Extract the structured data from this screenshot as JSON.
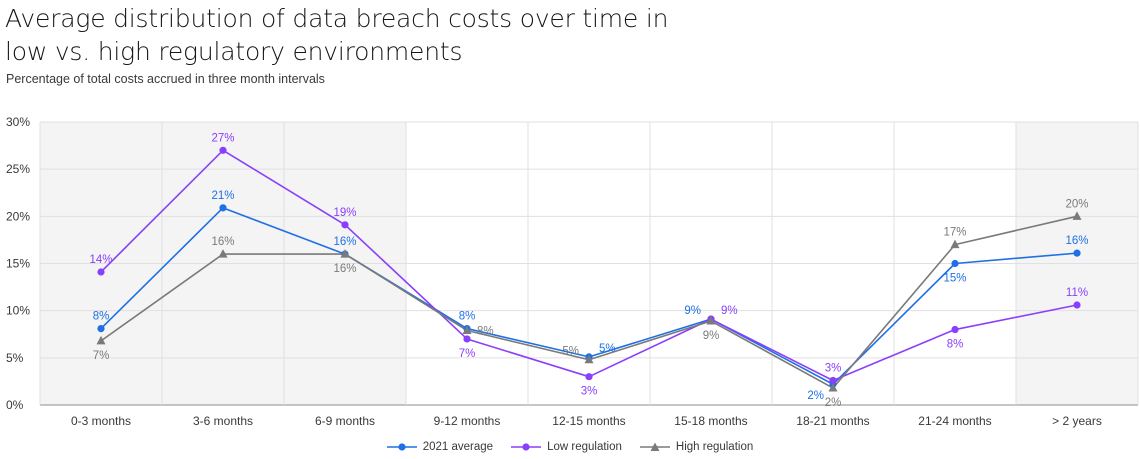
{
  "title": "Average distribution of data breach costs over time in low vs. high regulatory environments",
  "subtitle": "Percentage of total costs accrued in three month intervals",
  "chart_data": {
    "type": "line",
    "categories": [
      "0-3 months",
      "3-6 months",
      "6-9 months",
      "9-12 months",
      "12-15 months",
      "15-18 months",
      "18-21 months",
      "21-24 months",
      "> 2 years"
    ],
    "ylim": [
      0,
      30
    ],
    "yticks": [
      0,
      5,
      10,
      15,
      20,
      25,
      30
    ],
    "ytick_labels": [
      "0%",
      "5%",
      "10%",
      "15%",
      "20%",
      "25%",
      "30%"
    ],
    "grid": true,
    "legend_position": "bottom-center",
    "shaded_columns": [
      0,
      1,
      2,
      8
    ],
    "series": [
      {
        "name": "2021 average",
        "color": "#1f70e4",
        "marker": "circle",
        "values": [
          8.1,
          20.9,
          16.0,
          8.1,
          5.1,
          9.1,
          2.2,
          15.0,
          16.1
        ],
        "labels": [
          "8%",
          "21%",
          "16%",
          "8%",
          "5%",
          "9%",
          "2%",
          "15%",
          "16%"
        ],
        "label_pos": [
          "above",
          "above",
          "above",
          "above",
          "above-right",
          "above-left",
          "below-left",
          "below",
          "above"
        ]
      },
      {
        "name": "Low regulation",
        "color": "#8a3ffc",
        "marker": "circle",
        "values": [
          14.1,
          27.0,
          19.1,
          7.0,
          3.0,
          9.1,
          2.6,
          8.0,
          10.6
        ],
        "labels": [
          "14%",
          "27%",
          "19%",
          "7%",
          "3%",
          "9%",
          "3%",
          "8%",
          "11%"
        ],
        "label_pos": [
          "above",
          "above",
          "above",
          "below",
          "below",
          "above-right",
          "above",
          "below",
          "above"
        ]
      },
      {
        "name": "High regulation",
        "color": "#7a7a7a",
        "marker": "triangle",
        "values": [
          6.8,
          16.0,
          16.0,
          7.9,
          4.8,
          8.9,
          1.8,
          17.0,
          20.0
        ],
        "labels": [
          "7%",
          "16%",
          "16%",
          "8%",
          "5%",
          "9%",
          "2%",
          "17%",
          "20%"
        ],
        "label_pos": [
          "below",
          "above",
          "below",
          "right",
          "above-left",
          "below",
          "below",
          "above",
          "above"
        ]
      }
    ]
  }
}
